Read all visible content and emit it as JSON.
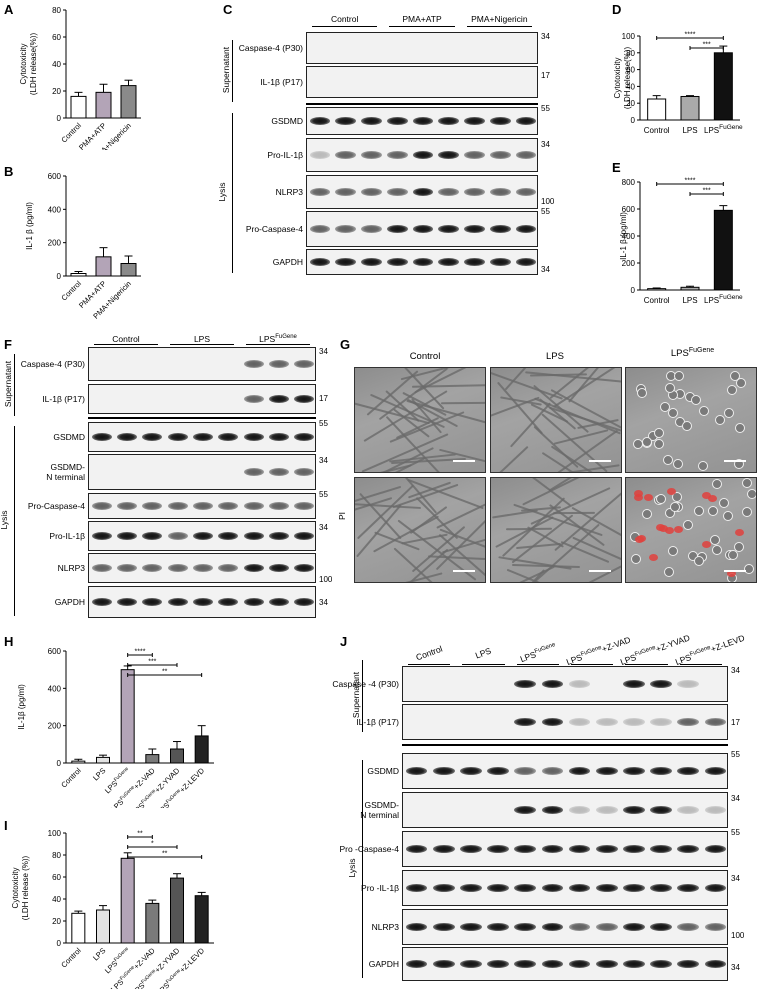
{
  "panels": {
    "A": "A",
    "B": "B",
    "C": "C",
    "D": "D",
    "E": "E",
    "F": "F",
    "G": "G",
    "H": "H",
    "I": "I",
    "J": "J"
  },
  "chart_data": [
    {
      "id": "A",
      "type": "bar",
      "categories": [
        "Control",
        "PMA+ATP",
        "PMA+Nigericin"
      ],
      "values": [
        16,
        19,
        24
      ],
      "errors": [
        3,
        6,
        4
      ],
      "ylabel_lines": [
        "Cytotoxicity",
        "(LDH  release(%))"
      ],
      "ylim": [
        0,
        80
      ],
      "yticks": [
        "0",
        "20",
        "40",
        "60",
        "80"
      ],
      "colors": [
        "#ffffff",
        "#b3a4b7",
        "#8a8a8a"
      ]
    },
    {
      "id": "B",
      "type": "bar",
      "categories": [
        "Control",
        "PMA+ATP",
        "PMA+Nigericin"
      ],
      "values": [
        15,
        115,
        75
      ],
      "errors": [
        12,
        55,
        45
      ],
      "ylabel_lines": [
        "IL-1 β (pg/ml)"
      ],
      "ylim": [
        0,
        600
      ],
      "yticks": [
        "0",
        "200",
        "400",
        "600"
      ],
      "colors": [
        "#ffffff",
        "#b3a4b7",
        "#8a8a8a"
      ]
    },
    {
      "id": "D",
      "type": "bar",
      "categories": [
        "Control",
        "LPS",
        "LPS^FuGene"
      ],
      "values": [
        25,
        28,
        80
      ],
      "errors": [
        4,
        1,
        8
      ],
      "ylabel_lines": [
        "Cytotoxicity",
        "(LDH  release(%))"
      ],
      "ylim": [
        0,
        100
      ],
      "yticks": [
        "0",
        "20",
        "40",
        "60",
        "80",
        "100"
      ],
      "colors": [
        "#ffffff",
        "#aaaaaa",
        "#111111"
      ],
      "brackets": [
        {
          "from": 0,
          "to": 2,
          "label": "****"
        },
        {
          "from": 1,
          "to": 2,
          "label": "***"
        }
      ]
    },
    {
      "id": "E",
      "type": "bar",
      "categories": [
        "Control",
        "LPS",
        "LPS^FuGene"
      ],
      "values": [
        10,
        20,
        590
      ],
      "errors": [
        5,
        8,
        35
      ],
      "ylabel_lines": [
        "IL-1 β (pg/ml)"
      ],
      "ylim": [
        0,
        800
      ],
      "yticks": [
        "0",
        "200",
        "400",
        "600",
        "800"
      ],
      "colors": [
        "#ffffff",
        "#aaaaaa",
        "#111111"
      ],
      "brackets": [
        {
          "from": 0,
          "to": 2,
          "label": "****"
        },
        {
          "from": 1,
          "to": 2,
          "label": "***"
        }
      ]
    },
    {
      "id": "H",
      "type": "bar",
      "categories": [
        "Control",
        "LPS",
        "LPS^FuGene",
        "LPS^FuGene+Z-VAD",
        "LPS^FuGene+Z-YVAD",
        "LPS^FuGene+Z-LEVD"
      ],
      "values": [
        10,
        30,
        500,
        45,
        75,
        145
      ],
      "errors": [
        10,
        12,
        20,
        30,
        40,
        55
      ],
      "ylabel_lines": [
        "IL-1β (pg/ml)"
      ],
      "ylim": [
        0,
        600
      ],
      "yticks": [
        "0",
        "200",
        "400",
        "600"
      ],
      "colors": [
        "#ffffff",
        "#e3e3e3",
        "#b3a4b7",
        "#7a7a7a",
        "#555555",
        "#222222"
      ],
      "brackets": [
        {
          "from": 2,
          "to": 3,
          "label": "****"
        },
        {
          "from": 2,
          "to": 4,
          "label": "***"
        },
        {
          "from": 2,
          "to": 5,
          "label": "**"
        }
      ]
    },
    {
      "id": "I",
      "type": "bar",
      "categories": [
        "Control",
        "LPS",
        "LPS^FuGene",
        "LPS^FuGene+Z-VAD",
        "LPS^FuGene+Z-YVAD",
        "LPS^FuGene+Z-LEVD"
      ],
      "values": [
        27,
        30,
        77,
        36,
        59,
        43
      ],
      "errors": [
        2,
        4,
        5,
        3,
        4,
        3
      ],
      "ylabel_lines": [
        "Cytotoxicity",
        "(LDH release (%))"
      ],
      "ylim": [
        0,
        100
      ],
      "yticks": [
        "0",
        "20",
        "40",
        "60",
        "80",
        "100"
      ],
      "colors": [
        "#ffffff",
        "#e3e3e3",
        "#b3a4b7",
        "#7a7a7a",
        "#555555",
        "#222222"
      ],
      "brackets": [
        {
          "from": 2,
          "to": 3,
          "label": "**"
        },
        {
          "from": 2,
          "to": 4,
          "label": "*"
        },
        {
          "from": 2,
          "to": 5,
          "label": "**"
        }
      ]
    }
  ],
  "blots": {
    "C": {
      "groups": [
        "Control",
        "PMA+ATP",
        "PMA+Nigericin"
      ],
      "supernatant_label": "Supernatant",
      "lysis_label": "Lysis",
      "rows": [
        {
          "label": "Caspase-4 (P30)",
          "mw": "34"
        },
        {
          "label": "IL-1β (P17)",
          "mw": "17"
        },
        {
          "label": "GSDMD",
          "mw": "55"
        },
        {
          "label": "Pro-IL-1β",
          "mw": "34"
        },
        {
          "label": "NLRP3",
          "mw": "100"
        },
        {
          "label": "Pro-Caspase-4",
          "mw": "55"
        },
        {
          "label": "GAPDH",
          "mw": "34"
        }
      ]
    },
    "F": {
      "groups": [
        "Control",
        "LPS",
        "LPS"
      ],
      "group_sup": "FuGene",
      "supernatant_label": "Supernatant",
      "lysis_label": "Lysis",
      "rows": [
        {
          "label": "Caspase-4 (P30)",
          "mw": "34"
        },
        {
          "label": "IL-1β (P17)",
          "mw": "17"
        },
        {
          "label": "GSDMD",
          "mw": "55"
        },
        {
          "label": "GSDMD-",
          "label2": "N terminal",
          "mw": "34"
        },
        {
          "label": "Pro-Caspase-4",
          "mw": "55"
        },
        {
          "label": "Pro-IL-1β",
          "mw": "34"
        },
        {
          "label": "NLRP3",
          "mw": "100"
        },
        {
          "label": "GAPDH",
          "mw": "34"
        }
      ]
    },
    "J": {
      "groups": [
        "Control",
        "LPS",
        "LPS",
        "LPS",
        "LPS",
        "LPS"
      ],
      "group_sups": [
        "",
        "",
        "FuGene",
        "FuGene",
        "FuGene",
        "FuGene"
      ],
      "group_suffix": [
        "",
        "",
        "",
        "+Z-VAD",
        "+Z-YVAD",
        "+Z-LEVD"
      ],
      "supernatant_label": "Supernatant",
      "lysis_label": "Lysis",
      "rows": [
        {
          "label": "Caspase -4 (P30)",
          "mw": "34"
        },
        {
          "label": "IL-1β (P17)",
          "mw": "17"
        },
        {
          "label": "GSDMD",
          "mw": "55"
        },
        {
          "label": "GSDMD-",
          "label2": "N terminal",
          "mw": "34"
        },
        {
          "label": "Pro -Caspase-4",
          "mw": "55"
        },
        {
          "label": "Pro -IL-1β",
          "mw": "34"
        },
        {
          "label": "NLRP3",
          "mw": "100"
        },
        {
          "label": "GAPDH",
          "mw": "34"
        }
      ]
    }
  },
  "microscopy": {
    "columns": [
      "Control",
      "LPS",
      "LPS"
    ],
    "column_sup": [
      "",
      "",
      "FuGene"
    ],
    "row_label": "PI"
  }
}
